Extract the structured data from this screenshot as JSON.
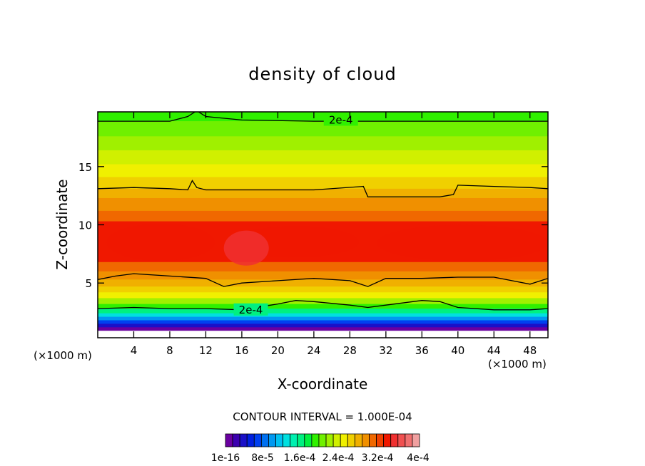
{
  "chart_data": {
    "type": "heatmap",
    "title": "density of cloud",
    "xlabel": "X-coordinate",
    "ylabel": "Z-coordinate",
    "x_unit": "(×1000 m)",
    "y_unit": "(×1000 m)",
    "xlim": [
      0,
      50
    ],
    "ylim": [
      0.3,
      19.7
    ],
    "x_ticks": [
      4,
      8,
      12,
      16,
      20,
      24,
      28,
      32,
      36,
      40,
      44,
      48
    ],
    "x_tick_labels": [
      "4",
      "8",
      "12",
      "16",
      "20",
      "24",
      "28",
      "32",
      "36",
      "40",
      "44",
      "48"
    ],
    "y_ticks": [
      5,
      10,
      15
    ],
    "y_tick_labels": [
      "5",
      "10",
      "15"
    ],
    "contour_interval_text": "CONTOUR INTERVAL = 1.000E-04",
    "contour_labels": [
      {
        "text": "2e-4",
        "x": 27,
        "z": 19
      },
      {
        "text": "2e-4",
        "x": 17,
        "z": 2.7
      }
    ],
    "colorbar": {
      "labels": [
        "1e-16",
        "8e-5",
        "1.6e-4",
        "2.4e-4",
        "3.2e-4",
        "4e-4"
      ],
      "colors": [
        "#6a00a0",
        "#3c00b0",
        "#1a10c8",
        "#0020e0",
        "#0040f0",
        "#0070f0",
        "#0098f0",
        "#00c0f0",
        "#00e0e0",
        "#00f0b0",
        "#00f080",
        "#00f040",
        "#30f000",
        "#70f000",
        "#a0f000",
        "#d0f000",
        "#f0f000",
        "#f0d000",
        "#f0b000",
        "#f09000",
        "#f06800",
        "#f04000",
        "#f01800",
        "#f03030",
        "#f05050",
        "#f07070",
        "#f0a0a0"
      ]
    },
    "bands": [
      {
        "z_top": 19.7,
        "z_bottom": 18.9,
        "color": "#30f000"
      },
      {
        "z_top": 18.9,
        "z_bottom": 17.6,
        "color": "#70f000"
      },
      {
        "z_top": 17.6,
        "z_bottom": 16.4,
        "color": "#a0f000"
      },
      {
        "z_top": 16.4,
        "z_bottom": 15.2,
        "color": "#d0f000"
      },
      {
        "z_top": 15.2,
        "z_bottom": 14.1,
        "color": "#f0f000"
      },
      {
        "z_top": 14.1,
        "z_bottom": 13.1,
        "color": "#f0d000"
      },
      {
        "z_top": 13.1,
        "z_bottom": 12.3,
        "color": "#f0b000"
      },
      {
        "z_top": 12.3,
        "z_bottom": 11.2,
        "color": "#f09000"
      },
      {
        "z_top": 11.2,
        "z_bottom": 10.3,
        "color": "#f06800"
      },
      {
        "z_top": 10.3,
        "z_bottom": 6.8,
        "color": "#f01800"
      },
      {
        "z_top": 6.8,
        "z_bottom": 6.0,
        "color": "#f06800"
      },
      {
        "z_top": 6.0,
        "z_bottom": 5.3,
        "color": "#f09000"
      },
      {
        "z_top": 5.3,
        "z_bottom": 4.7,
        "color": "#f0b000"
      },
      {
        "z_top": 4.7,
        "z_bottom": 4.2,
        "color": "#f0d000"
      },
      {
        "z_top": 4.2,
        "z_bottom": 3.7,
        "color": "#f0f000"
      },
      {
        "z_top": 3.7,
        "z_bottom": 3.2,
        "color": "#a0f000"
      },
      {
        "z_top": 3.2,
        "z_bottom": 2.8,
        "color": "#30f000"
      },
      {
        "z_top": 2.8,
        "z_bottom": 2.4,
        "color": "#00f080"
      },
      {
        "z_top": 2.4,
        "z_bottom": 2.1,
        "color": "#00e0e0"
      },
      {
        "z_top": 2.1,
        "z_bottom": 1.8,
        "color": "#0098f0"
      },
      {
        "z_top": 1.8,
        "z_bottom": 1.5,
        "color": "#0040f0"
      },
      {
        "z_top": 1.5,
        "z_bottom": 1.2,
        "color": "#1a10c8"
      },
      {
        "z_top": 1.2,
        "z_bottom": 0.9,
        "color": "#6a00a0"
      },
      {
        "z_top": 0.9,
        "z_bottom": 0.3,
        "color": "#ffffff"
      }
    ],
    "core_regions": [
      {
        "x": [
          1,
          13
        ],
        "z": [
          6.9,
          10.1
        ],
        "color": "#f01800"
      },
      {
        "x": [
          15,
          29
        ],
        "z": [
          7.2,
          9.9
        ],
        "color": "#f01800"
      },
      {
        "x": [
          31,
          50
        ],
        "z": [
          6.9,
          10.0
        ],
        "color": "#f01800"
      },
      {
        "x": [
          14,
          19
        ],
        "z": [
          6.5,
          9.5
        ],
        "color": "#f03030"
      }
    ],
    "contours": [
      {
        "level": "2e-4 upper",
        "x": [
          0,
          4,
          8,
          10,
          11,
          12,
          16,
          24,
          30,
          36,
          44,
          50
        ],
        "z": [
          18.9,
          18.9,
          18.9,
          19.3,
          19.8,
          19.3,
          19.0,
          18.9,
          18.9,
          18.9,
          18.9,
          18.9
        ]
      },
      {
        "level": "1e-4 upper",
        "x": [
          0,
          4,
          8,
          10,
          10.5,
          11,
          12,
          16,
          24,
          29.5,
          30,
          30.5,
          34,
          38,
          39.5,
          40,
          44,
          48,
          50
        ],
        "z": [
          13.1,
          13.2,
          13.1,
          13.0,
          13.8,
          13.2,
          13.0,
          13.0,
          13.0,
          13.3,
          12.4,
          12.4,
          12.4,
          12.4,
          12.6,
          13.4,
          13.3,
          13.2,
          13.1
        ]
      },
      {
        "level": "1e-4 lower",
        "x": [
          0,
          2,
          4,
          8,
          12,
          14,
          16,
          20,
          24,
          28,
          30,
          32,
          36,
          40,
          44,
          48,
          50
        ],
        "z": [
          5.3,
          5.6,
          5.8,
          5.6,
          5.4,
          4.7,
          5.0,
          5.2,
          5.4,
          5.2,
          4.7,
          5.4,
          5.4,
          5.5,
          5.5,
          4.9,
          5.4
        ]
      },
      {
        "level": "2e-4 lower",
        "x": [
          0,
          4,
          8,
          12,
          16,
          20,
          22,
          24,
          28,
          30,
          32,
          36,
          38,
          40,
          44,
          48,
          50
        ],
        "z": [
          2.8,
          2.9,
          2.8,
          2.8,
          2.7,
          3.2,
          3.5,
          3.4,
          3.1,
          2.9,
          3.1,
          3.5,
          3.4,
          2.9,
          2.7,
          2.7,
          2.8
        ]
      }
    ]
  }
}
